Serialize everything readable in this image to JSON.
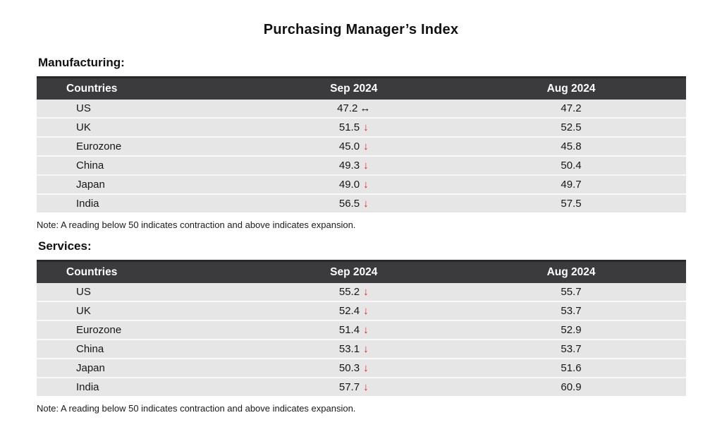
{
  "title": "Purchasing Manager’s Index",
  "colors": {
    "header_bg": "#3b3b3d",
    "header_border_top": "#29292b",
    "header_text": "#ffffff",
    "row_bg": "#e6e6e6",
    "down_arrow_red": "#e02128",
    "steady_arrow_black": "#111111"
  },
  "sections": [
    {
      "label": "Manufacturing:",
      "columns": [
        "Countries",
        "Sep 2024",
        "Aug 2024"
      ],
      "rows": [
        {
          "country": "US",
          "sep": "47.2",
          "arrow": "↔",
          "trend": "steady",
          "aug": "47.2"
        },
        {
          "country": "UK",
          "sep": "51.5",
          "arrow": "↓",
          "trend": "down",
          "aug": "52.5"
        },
        {
          "country": "Eurozone",
          "sep": "45.0",
          "arrow": "↓",
          "trend": "down",
          "aug": "45.8"
        },
        {
          "country": "China",
          "sep": "49.3",
          "arrow": "↓",
          "trend": "down",
          "aug": "50.4"
        },
        {
          "country": "Japan",
          "sep": "49.0",
          "arrow": "↓",
          "trend": "down",
          "aug": "49.7"
        },
        {
          "country": "India",
          "sep": "56.5",
          "arrow": "↓",
          "trend": "down",
          "aug": "57.5"
        }
      ],
      "note": "Note: A reading below 50 indicates contraction and above indicates expansion."
    },
    {
      "label": "Services:",
      "columns": [
        "Countries",
        "Sep 2024",
        "Aug 2024"
      ],
      "rows": [
        {
          "country": "US",
          "sep": "55.2",
          "arrow": "↓",
          "trend": "down",
          "aug": "55.7"
        },
        {
          "country": "UK",
          "sep": "52.4",
          "arrow": "↓",
          "trend": "down",
          "aug": "53.7"
        },
        {
          "country": "Eurozone",
          "sep": "51.4",
          "arrow": "↓",
          "trend": "down",
          "aug": "52.9"
        },
        {
          "country": "China",
          "sep": "53.1",
          "arrow": "↓",
          "trend": "down",
          "aug": "53.7"
        },
        {
          "country": "Japan",
          "sep": "50.3",
          "arrow": "↓",
          "trend": "down",
          "aug": "51.6"
        },
        {
          "country": "India",
          "sep": "57.7",
          "arrow": "↓",
          "trend": "down",
          "aug": "60.9"
        }
      ],
      "note": "Note: A reading below 50 indicates contraction and above indicates expansion."
    }
  ],
  "chart_data": [
    {
      "type": "table",
      "title": "Purchasing Manager’s Index — Manufacturing",
      "columns": [
        "Countries",
        "Sep 2024",
        "Aug 2024"
      ],
      "rows": [
        [
          "US",
          47.2,
          47.2
        ],
        [
          "UK",
          51.5,
          52.5
        ],
        [
          "Eurozone",
          45.0,
          45.8
        ],
        [
          "China",
          49.3,
          50.4
        ],
        [
          "Japan",
          49.0,
          49.7
        ],
        [
          "India",
          56.5,
          57.5
        ]
      ],
      "annotations": [
        "US unchanged (↔); all other countries declined (↓) vs Aug 2024"
      ]
    },
    {
      "type": "table",
      "title": "Purchasing Manager’s Index — Services",
      "columns": [
        "Countries",
        "Sep 2024",
        "Aug 2024"
      ],
      "rows": [
        [
          "US",
          55.2,
          55.7
        ],
        [
          "UK",
          52.4,
          53.7
        ],
        [
          "Eurozone",
          51.4,
          52.9
        ],
        [
          "China",
          53.1,
          53.7
        ],
        [
          "Japan",
          50.3,
          51.6
        ],
        [
          "India",
          57.7,
          60.9
        ]
      ],
      "annotations": [
        "All countries declined (↓) vs Aug 2024"
      ]
    }
  ]
}
